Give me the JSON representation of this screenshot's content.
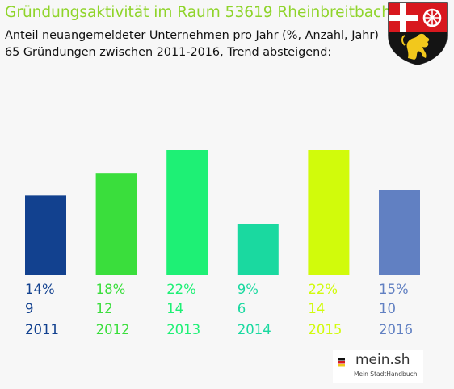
{
  "header": {
    "title": "Gründungsaktivität im Raum 53619 Rheinbreitbach",
    "subtitle1": "Anteil neuangemeldeter Unternehmen pro Jahr (%, Anzahl, Jahr)",
    "subtitle2": "65 Gründungen zwischen 2011-2016, Trend absteigend:"
  },
  "logo": {
    "name": "mein.sh",
    "tagline": "Mein StadtHandbuch"
  },
  "colors": {
    "title": "#8fd42a",
    "bars": [
      "#12418f",
      "#3ade3c",
      "#1ef075",
      "#1ad9a0",
      "#d1fb0b",
      "#6180c2"
    ]
  },
  "chart_data": {
    "type": "bar",
    "categories": [
      "2011",
      "2012",
      "2013",
      "2014",
      "2015",
      "2016"
    ],
    "series": [
      {
        "values": [
          14,
          18,
          22,
          9,
          22,
          15
        ]
      }
    ],
    "percent_labels": [
      "14%",
      "18%",
      "22%",
      "9%",
      "22%",
      "15%"
    ],
    "counts": [
      9,
      12,
      14,
      6,
      14,
      10
    ],
    "ylim": [
      0,
      22
    ],
    "grid": false,
    "legend": "none"
  }
}
